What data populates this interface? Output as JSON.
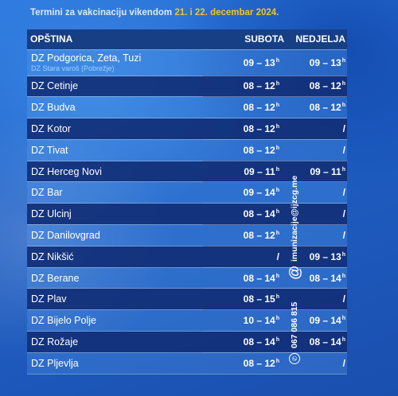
{
  "header": {
    "prefix": "Termini za vakcinaciju vikendom ",
    "dates": "21. i 22. decembar 2024."
  },
  "columns": {
    "name": "OPŠTINA",
    "saturday": "SUBOTA",
    "sunday": "NEDJELJA"
  },
  "hour_mark": "h",
  "rows": [
    {
      "name": "DZ Podgorica, Zeta, Tuzi",
      "sub": "DZ Stara varoš (Pobrežje)",
      "sat": "09 – 13",
      "sun": "09 – 13"
    },
    {
      "name": "DZ Cetinje",
      "sat": "08 – 12",
      "sun": "08 – 12"
    },
    {
      "name": "DZ Budva",
      "sat": "08 – 12",
      "sun": "08 – 12"
    },
    {
      "name": "DZ Kotor",
      "sat": "08 – 12",
      "sun": "/"
    },
    {
      "name": "DZ Tivat",
      "sat": "08 – 12",
      "sun": "/"
    },
    {
      "name": "DZ Herceg Novi",
      "sat": "09 – 11",
      "sun": "09 – 11"
    },
    {
      "name": "DZ Bar",
      "sat": "09 – 14",
      "sun": "/"
    },
    {
      "name": "DZ Ulcinj",
      "sat": "08 – 14",
      "sun": "/"
    },
    {
      "name": "DZ Danilovgrad",
      "sat": "08 – 12",
      "sun": "/"
    },
    {
      "name": "DZ Nikšić",
      "sat": "/",
      "sun": "09 – 13"
    },
    {
      "name": "DZ Berane",
      "sat": "08 – 14",
      "sun": "08 – 14"
    },
    {
      "name": "DZ Plav",
      "sat": "08 – 15",
      "sun": "/"
    },
    {
      "name": "DZ Bijelo Polje",
      "sat": "10 – 14",
      "sun": "09 – 14"
    },
    {
      "name": "DZ Rožaje",
      "sat": "08 – 14",
      "sun": "08 – 14"
    },
    {
      "name": "DZ Pljevlja",
      "sat": "08 – 12",
      "sun": "/"
    }
  ],
  "contact": {
    "phone_icon": "phone-icon",
    "phone": "067 086 815",
    "email_icon": "at-icon",
    "email": "imunizacije@ijzcg.me"
  },
  "colors": {
    "background": "#1f62c9",
    "header_bar": "#163f86",
    "accent_date": "#f3c326"
  }
}
